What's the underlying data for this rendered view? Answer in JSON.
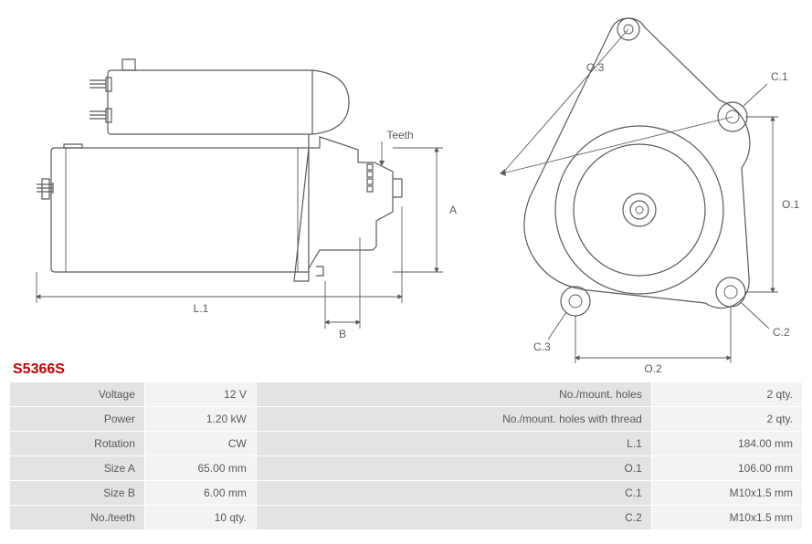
{
  "part_number": "S5366S",
  "colors": {
    "stroke": "#5a5a5a",
    "accent": "#c40000",
    "bg": "#ffffff",
    "row_label": "#e3e3e3",
    "row_value": "#f3f3f3"
  },
  "left_diagram": {
    "labels": {
      "teeth": "Teeth",
      "A": "A",
      "L1": "L.1",
      "B": "B"
    }
  },
  "right_diagram": {
    "labels": {
      "C1": "C.1",
      "C2": "C.2",
      "C3": "C.3",
      "O1": "O.1",
      "O2": "O.2",
      "O3": "O.3"
    }
  },
  "spec_rows": [
    {
      "l1": "Voltage",
      "v1": "12 V",
      "l2": "No./mount. holes",
      "v2": "2 qty."
    },
    {
      "l1": "Power",
      "v1": "1.20 kW",
      "l2": "No./mount. holes with thread",
      "v2": "2 qty."
    },
    {
      "l1": "Rotation",
      "v1": "CW",
      "l2": "L.1",
      "v2": "184.00 mm"
    },
    {
      "l1": "Size A",
      "v1": "65.00 mm",
      "l2": "O.1",
      "v2": "106.00 mm"
    },
    {
      "l1": "Size B",
      "v1": "6.00 mm",
      "l2": "C.1",
      "v2": "M10x1.5 mm"
    },
    {
      "l1": "No./teeth",
      "v1": "10 qty.",
      "l2": "C.2",
      "v2": "M10x1.5 mm"
    }
  ]
}
